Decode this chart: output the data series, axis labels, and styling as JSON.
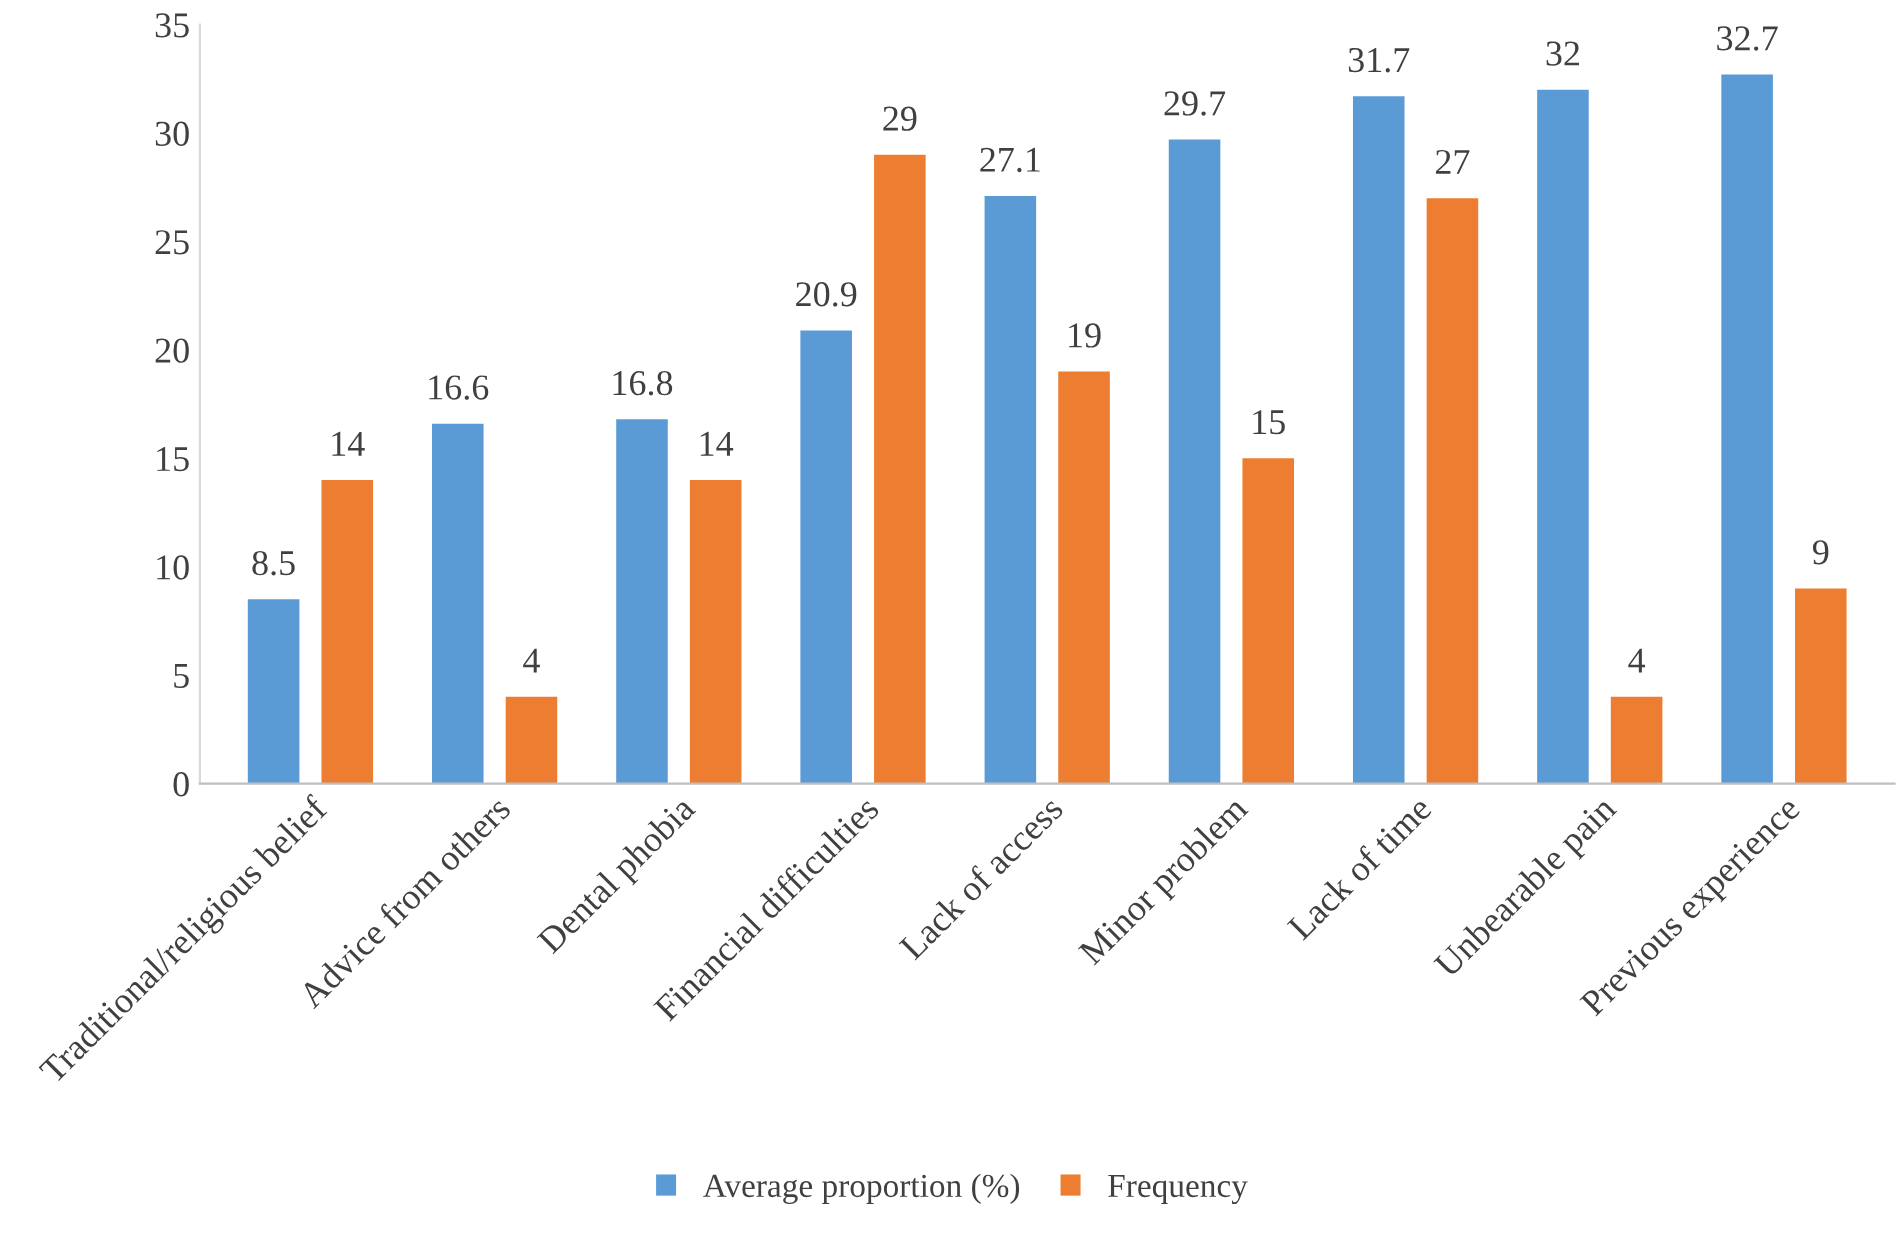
{
  "chart_data": {
    "type": "bar",
    "categories": [
      "Traditional/religious belief",
      "Advice from others",
      "Dental phobia",
      "Financial difficulties",
      "Lack of access",
      "Minor problem",
      "Lack of time",
      "Unbearable pain",
      "Previous experience"
    ],
    "series": [
      {
        "name": "Average proportion (%)",
        "color": "#5b9bd5",
        "values": [
          8.5,
          16.6,
          16.8,
          20.9,
          27.1,
          29.7,
          31.7,
          32,
          32.7
        ]
      },
      {
        "name": "Frequency",
        "color": "#ed7d31",
        "values": [
          14,
          4,
          14,
          29,
          19,
          15,
          27,
          4,
          9
        ]
      }
    ],
    "ylim": [
      0,
      35
    ],
    "yticks": [
      0,
      5,
      10,
      15,
      20,
      25,
      30,
      35
    ],
    "data_labels": true,
    "grid": false,
    "legend": "bottom"
  }
}
